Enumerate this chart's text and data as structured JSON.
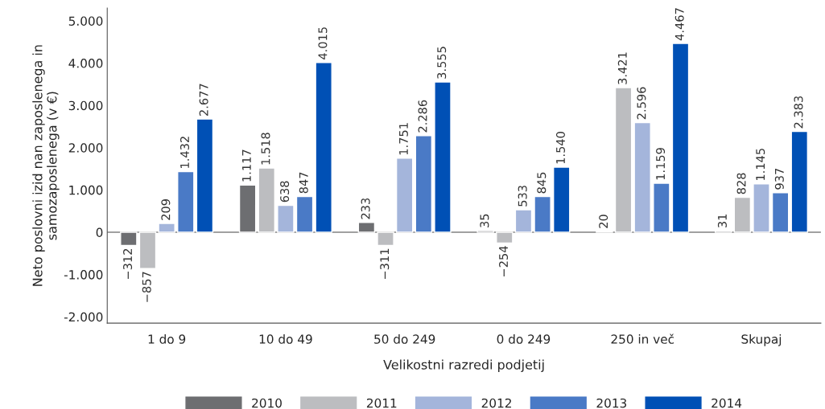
{
  "chart_data": {
    "type": "bar",
    "xlabel": "Velikostni razredi podjetij",
    "ylabel": "Neto poslovni izid nan zaposlenega in samozaposlenega (v €)",
    "categories": [
      "1 do 9",
      "10 do 49",
      "50 do 249",
      "0 do 249",
      "250 in več",
      "Skupaj"
    ],
    "series": [
      {
        "name": "2010",
        "color": "#6d6e71",
        "values": [
          -312,
          1117,
          233,
          35,
          20,
          31
        ],
        "value_labels": [
          "−312",
          "1.117",
          "233",
          "35",
          "20",
          "31"
        ]
      },
      {
        "name": "2011",
        "color": "#bcbdc0",
        "values": [
          -857,
          1518,
          -311,
          -254,
          3421,
          828
        ],
        "value_labels": [
          "−857",
          "1.518",
          "−311",
          "−254",
          "3.421",
          "828"
        ]
      },
      {
        "name": "2012",
        "color": "#a4b5db",
        "values": [
          209,
          638,
          1751,
          533,
          2596,
          1145
        ],
        "value_labels": [
          "209",
          "638",
          "1.751",
          "533",
          "2.596",
          "1.145"
        ]
      },
      {
        "name": "2013",
        "color": "#4a7ac6",
        "values": [
          1432,
          847,
          2286,
          845,
          1159,
          937
        ],
        "value_labels": [
          "1.432",
          "847",
          "2.286",
          "845",
          "1.159",
          "937"
        ]
      },
      {
        "name": "2014",
        "color": "#0050b5",
        "values": [
          2677,
          4015,
          3555,
          1540,
          4467,
          2383
        ],
        "value_labels": [
          "2.677",
          "4.015",
          "3.555",
          "1.540",
          "4.467",
          "2.383"
        ]
      }
    ],
    "ylim": [
      -2150,
      5300
    ],
    "yticks": [
      {
        "value": -2000,
        "label": "-2.000"
      },
      {
        "value": -1000,
        "label": "-1.000"
      },
      0,
      {
        "value": 1000,
        "label": "1.000"
      },
      {
        "value": 2000,
        "label": "2.000"
      },
      {
        "value": 3000,
        "label": "3.000"
      },
      {
        "value": 4000,
        "label": "4.000"
      },
      {
        "value": 5000,
        "label": "5.000"
      }
    ],
    "ref_lines": [
      {
        "axis": "y",
        "value": 0,
        "color": "#808080"
      }
    ],
    "grid": false,
    "legend": "bottom"
  }
}
